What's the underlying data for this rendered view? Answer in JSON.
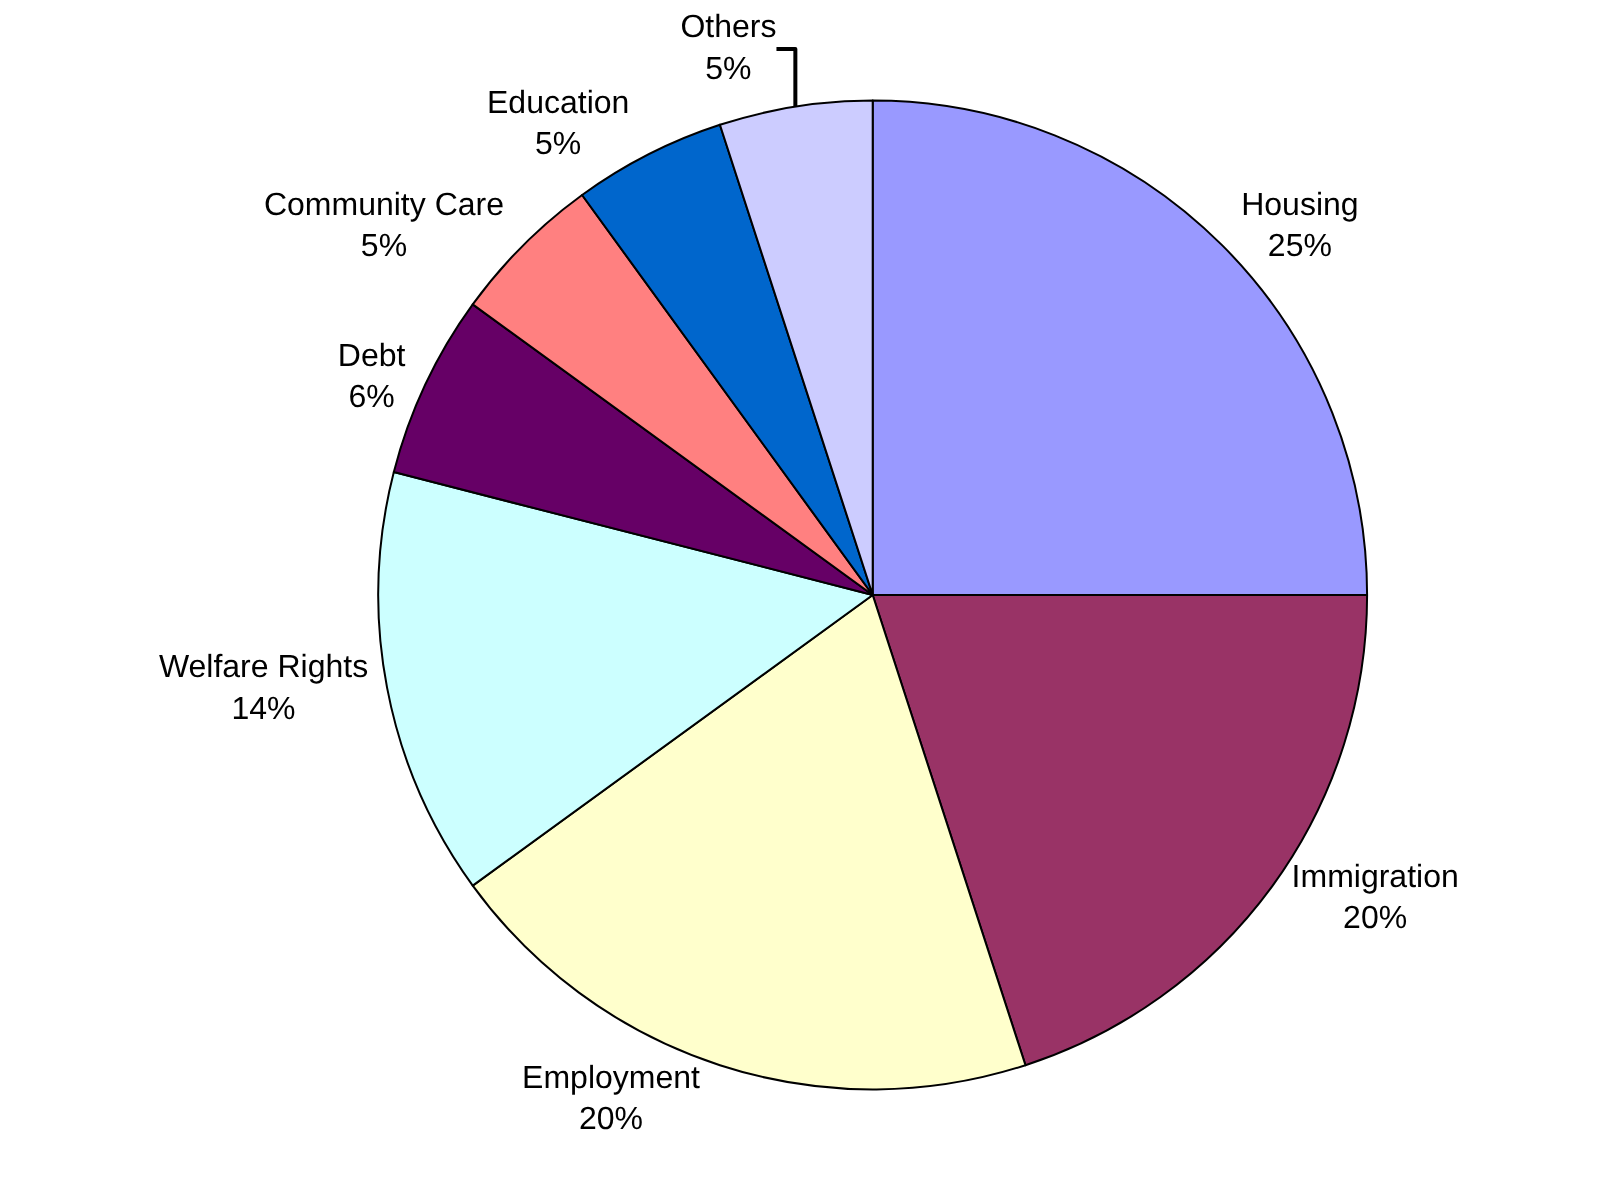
{
  "chart_data": {
    "type": "pie",
    "categories": [
      "Housing",
      "Immigration",
      "Employment",
      "Welfare Rights",
      "Debt",
      "Community Care",
      "Education",
      "Others"
    ],
    "values": [
      25,
      20,
      20,
      14,
      6,
      5,
      5,
      5
    ],
    "value_labels": [
      "25%",
      "20%",
      "20%",
      "14%",
      "6%",
      "5%",
      "5%",
      "5%"
    ],
    "colors": [
      "#9999ff",
      "#993366",
      "#ffffcc",
      "#ccffff",
      "#660066",
      "#ff8080",
      "#0066cc",
      "#ccccff"
    ],
    "legend": false
  }
}
